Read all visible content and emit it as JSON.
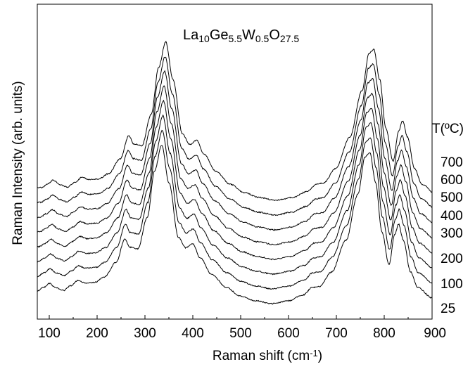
{
  "chart_data": {
    "type": "line",
    "title": {
      "parts": [
        {
          "text": "La",
          "sub": false
        },
        {
          "text": "10",
          "sub": true
        },
        {
          "text": "Ge",
          "sub": false
        },
        {
          "text": "5.5",
          "sub": true
        },
        {
          "text": "W",
          "sub": false
        },
        {
          "text": "0.5",
          "sub": true
        },
        {
          "text": "O",
          "sub": false
        },
        {
          "text": "27.5",
          "sub": true
        }
      ]
    },
    "xlabel": {
      "main": "Raman shift (cm",
      "sup": "-1",
      "tail": ")"
    },
    "ylabel": "Raman Intensity (arb. units)",
    "legend_title": "T(ºC)",
    "xlim": [
      75,
      900
    ],
    "xticks": [
      100,
      200,
      300,
      400,
      500,
      600,
      700,
      800,
      900
    ],
    "yticks_shown": false,
    "grid": false,
    "series": [
      {
        "name": "25",
        "offset": 0
      },
      {
        "name": "100",
        "offset": 1
      },
      {
        "name": "200",
        "offset": 2
      },
      {
        "name": "300",
        "offset": 3
      },
      {
        "name": "400",
        "offset": 4
      },
      {
        "name": "500",
        "offset": 5
      },
      {
        "name": "600",
        "offset": 6
      },
      {
        "name": "700",
        "offset": 7
      }
    ],
    "profile_points": [
      [
        75,
        22
      ],
      [
        88,
        28
      ],
      [
        100,
        35
      ],
      [
        115,
        27
      ],
      [
        130,
        23
      ],
      [
        145,
        31
      ],
      [
        160,
        40
      ],
      [
        175,
        36
      ],
      [
        195,
        37
      ],
      [
        215,
        46
      ],
      [
        240,
        72
      ],
      [
        258,
        112
      ],
      [
        268,
        98
      ],
      [
        285,
        95
      ],
      [
        305,
        150
      ],
      [
        320,
        230
      ],
      [
        335,
        275
      ],
      [
        350,
        210
      ],
      [
        370,
        115
      ],
      [
        385,
        97
      ],
      [
        400,
        104
      ],
      [
        415,
        80
      ],
      [
        440,
        50
      ],
      [
        470,
        28
      ],
      [
        500,
        13
      ],
      [
        530,
        5
      ],
      [
        565,
        0
      ],
      [
        600,
        5
      ],
      [
        630,
        15
      ],
      [
        650,
        28
      ],
      [
        665,
        30
      ],
      [
        690,
        55
      ],
      [
        720,
        110
      ],
      [
        745,
        190
      ],
      [
        760,
        255
      ],
      [
        770,
        262
      ],
      [
        782,
        210
      ],
      [
        795,
        125
      ],
      [
        810,
        68
      ],
      [
        822,
        120
      ],
      [
        830,
        138
      ],
      [
        840,
        110
      ],
      [
        855,
        55
      ],
      [
        870,
        28
      ],
      [
        900,
        10
      ]
    ]
  }
}
